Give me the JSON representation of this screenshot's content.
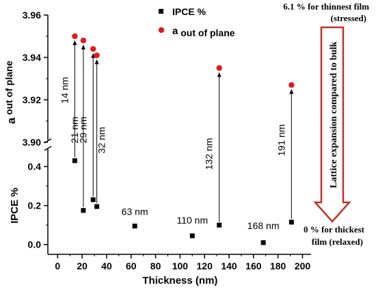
{
  "chart_data": {
    "type": "scatter",
    "xlabel": "Thickness (nm)",
    "x_ticks": [
      0,
      20,
      40,
      60,
      80,
      100,
      120,
      140,
      160,
      180,
      200
    ],
    "xlim": [
      -8,
      207
    ],
    "upper_panel": {
      "ylabel_main": "a",
      "ylabel_sub": "out of plane",
      "ylim": [
        3.9,
        3.96
      ],
      "ticks": [
        3.9,
        3.92,
        3.94,
        3.96
      ],
      "tick_labels": [
        "3.90",
        "3.92",
        "3.94",
        "3.96"
      ]
    },
    "lower_panel": {
      "ylabel": "IPCE %",
      "ylim": [
        -0.05,
        0.5
      ],
      "ticks": [
        0.0,
        0.2,
        0.4
      ],
      "tick_labels": [
        "0.0",
        "0.2",
        "0.4"
      ]
    },
    "series": [
      {
        "name": "IPCE %",
        "color": "#000000",
        "marker": "square",
        "panel": "lower",
        "points": [
          {
            "x": 14,
            "y": 0.43
          },
          {
            "x": 21,
            "y": 0.175
          },
          {
            "x": 29,
            "y": 0.23
          },
          {
            "x": 32,
            "y": 0.195
          },
          {
            "x": 63,
            "y": 0.095
          },
          {
            "x": 110,
            "y": 0.045
          },
          {
            "x": 132,
            "y": 0.1
          },
          {
            "x": 168,
            "y": 0.01
          },
          {
            "x": 191,
            "y": 0.115
          }
        ]
      },
      {
        "name_main": "a",
        "name_sub": "out of plane",
        "color": "#e31a1c",
        "marker": "circle",
        "panel": "upper",
        "points": [
          {
            "x": 14,
            "y": 3.95
          },
          {
            "x": 21,
            "y": 3.948
          },
          {
            "x": 29,
            "y": 3.944
          },
          {
            "x": 32,
            "y": 3.941
          },
          {
            "x": 132,
            "y": 3.935
          },
          {
            "x": 191,
            "y": 3.927
          }
        ]
      }
    ],
    "annotations": [
      {
        "text": "14 nm",
        "x": 14,
        "rotated": true
      },
      {
        "text": "21 nm",
        "x": 21,
        "rotated": true
      },
      {
        "text": "29 nm",
        "x": 29,
        "rotated": true
      },
      {
        "text": "32 nm",
        "x": 32,
        "rotated": true
      },
      {
        "text": "63 nm",
        "x": 63,
        "rotated": false
      },
      {
        "text": "110 nm",
        "x": 110,
        "rotated": false
      },
      {
        "text": "132 nm",
        "x": 132,
        "rotated": true
      },
      {
        "text": "168 nm",
        "x": 168,
        "rotated": false
      },
      {
        "text": "191 nm",
        "x": 191,
        "rotated": true
      }
    ],
    "side_panel": {
      "top_note_line1": "6.1 % for thinnest film",
      "top_note_line2": "(stressed)",
      "arrow_text": "Lattice expansion compared to bulk",
      "bottom_note_line1": "0 % for thickest",
      "bottom_note_line2": "film (relaxed)",
      "arrow_color": "#c0302b"
    },
    "legend_position": "top-center"
  }
}
